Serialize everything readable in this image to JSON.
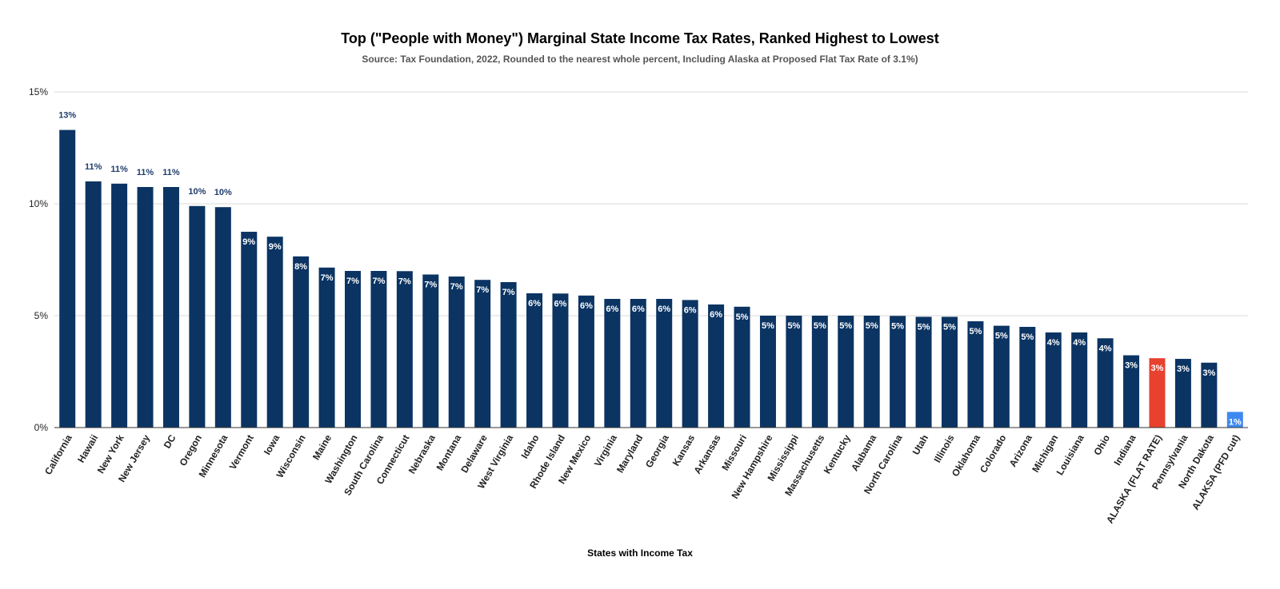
{
  "chart_data": {
    "type": "bar",
    "title": "Top (\"People with Money\") Marginal State Income Tax Rates, Ranked Highest to Lowest",
    "subtitle": "Source: Tax Foundation, 2022, Rounded to the nearest whole percent, Including Alaska at Proposed Flat Tax Rate of 3.1%)",
    "xlabel": "States with Income Tax",
    "ylabel": "",
    "ylim": [
      0,
      15
    ],
    "yticks": [
      {
        "value": 0,
        "label": "0%"
      },
      {
        "value": 5,
        "label": "5%"
      },
      {
        "value": 10,
        "label": "10%"
      },
      {
        "value": 15,
        "label": "15%"
      }
    ],
    "grid": true,
    "legend": "none",
    "colors": {
      "default": "#0b3463",
      "highlight_red": "#e8412f",
      "highlight_blue": "#3f88f0",
      "label_outside": "#1f3d6b",
      "label_inside": "#ffffff"
    },
    "bars": [
      {
        "category": "California",
        "value": 13.3,
        "label": "13%",
        "color": "default"
      },
      {
        "category": "Hawaii",
        "value": 11.0,
        "label": "11%",
        "color": "default"
      },
      {
        "category": "New York",
        "value": 10.9,
        "label": "11%",
        "color": "default"
      },
      {
        "category": "New Jersey",
        "value": 10.75,
        "label": "11%",
        "color": "default"
      },
      {
        "category": "DC",
        "value": 10.75,
        "label": "11%",
        "color": "default"
      },
      {
        "category": "Oregon",
        "value": 9.9,
        "label": "10%",
        "color": "default"
      },
      {
        "category": "Minnesota",
        "value": 9.85,
        "label": "10%",
        "color": "default"
      },
      {
        "category": "Vermont",
        "value": 8.75,
        "label": "9%",
        "color": "default"
      },
      {
        "category": "Iowa",
        "value": 8.53,
        "label": "9%",
        "color": "default"
      },
      {
        "category": "Wisconsin",
        "value": 7.65,
        "label": "8%",
        "color": "default"
      },
      {
        "category": "Maine",
        "value": 7.15,
        "label": "7%",
        "color": "default"
      },
      {
        "category": "Washington",
        "value": 7.0,
        "label": "7%",
        "color": "default"
      },
      {
        "category": "South Carolina",
        "value": 7.0,
        "label": "7%",
        "color": "default"
      },
      {
        "category": "Connecticut",
        "value": 6.99,
        "label": "7%",
        "color": "default"
      },
      {
        "category": "Nebraska",
        "value": 6.84,
        "label": "7%",
        "color": "default"
      },
      {
        "category": "Montana",
        "value": 6.75,
        "label": "7%",
        "color": "default"
      },
      {
        "category": "Delaware",
        "value": 6.6,
        "label": "7%",
        "color": "default"
      },
      {
        "category": "West Virginia",
        "value": 6.5,
        "label": "7%",
        "color": "default"
      },
      {
        "category": "Idaho",
        "value": 6.0,
        "label": "6%",
        "color": "default"
      },
      {
        "category": "Rhode Island",
        "value": 5.99,
        "label": "6%",
        "color": "default"
      },
      {
        "category": "New Mexico",
        "value": 5.9,
        "label": "6%",
        "color": "default"
      },
      {
        "category": "Virginia",
        "value": 5.75,
        "label": "6%",
        "color": "default"
      },
      {
        "category": "Maryland",
        "value": 5.75,
        "label": "6%",
        "color": "default"
      },
      {
        "category": "Georgia",
        "value": 5.75,
        "label": "6%",
        "color": "default"
      },
      {
        "category": "Kansas",
        "value": 5.7,
        "label": "6%",
        "color": "default"
      },
      {
        "category": "Arkansas",
        "value": 5.5,
        "label": "6%",
        "color": "default"
      },
      {
        "category": "Missouri",
        "value": 5.4,
        "label": "5%",
        "color": "default"
      },
      {
        "category": "New Hampshire",
        "value": 5.0,
        "label": "5%",
        "color": "default"
      },
      {
        "category": "Mississippi",
        "value": 5.0,
        "label": "5%",
        "color": "default"
      },
      {
        "category": "Massachusetts",
        "value": 5.0,
        "label": "5%",
        "color": "default"
      },
      {
        "category": "Kentucky",
        "value": 5.0,
        "label": "5%",
        "color": "default"
      },
      {
        "category": "Alabama",
        "value": 5.0,
        "label": "5%",
        "color": "default"
      },
      {
        "category": "North Carolina",
        "value": 4.99,
        "label": "5%",
        "color": "default"
      },
      {
        "category": "Utah",
        "value": 4.95,
        "label": "5%",
        "color": "default"
      },
      {
        "category": "Illinois",
        "value": 4.95,
        "label": "5%",
        "color": "default"
      },
      {
        "category": "Oklahoma",
        "value": 4.75,
        "label": "5%",
        "color": "default"
      },
      {
        "category": "Colorado",
        "value": 4.55,
        "label": "5%",
        "color": "default"
      },
      {
        "category": "Arizona",
        "value": 4.5,
        "label": "5%",
        "color": "default"
      },
      {
        "category": "Michigan",
        "value": 4.25,
        "label": "4%",
        "color": "default"
      },
      {
        "category": "Louisiana",
        "value": 4.25,
        "label": "4%",
        "color": "default"
      },
      {
        "category": "Ohio",
        "value": 3.99,
        "label": "4%",
        "color": "default"
      },
      {
        "category": "Indiana",
        "value": 3.23,
        "label": "3%",
        "color": "default"
      },
      {
        "category": "ALASKA (FLAT RATE)",
        "value": 3.1,
        "label": "3%",
        "color": "highlight_red"
      },
      {
        "category": "Pennsylvania",
        "value": 3.07,
        "label": "3%",
        "color": "default"
      },
      {
        "category": "North Dakota",
        "value": 2.9,
        "label": "3%",
        "color": "default"
      },
      {
        "category": "ALAKSA (PFD cut)",
        "value": 0.7,
        "label": "1%",
        "color": "highlight_blue"
      }
    ]
  }
}
